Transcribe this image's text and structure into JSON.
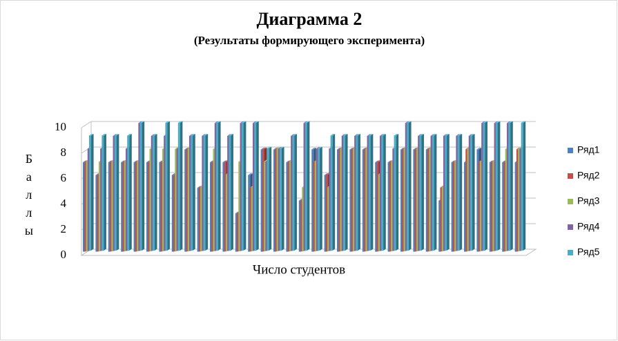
{
  "chart_data": {
    "type": "bar3d",
    "title": "Диаграмма 2",
    "subtitle": "(Результаты формирующего эксперимента)",
    "x_label": "Число студентов",
    "y_label": "Баллы",
    "categories": [
      null,
      null,
      null,
      null,
      null,
      null,
      null,
      null,
      null,
      null,
      null,
      null,
      null,
      null,
      null,
      null,
      null,
      null,
      null,
      null,
      null,
      null,
      null,
      null,
      null,
      null,
      null,
      null,
      null,
      null,
      null,
      null,
      null,
      null,
      null
    ],
    "series": [
      {
        "name": "Ряд1",
        "color": "#4f81bd",
        "values": [
          7,
          6,
          7,
          7,
          7,
          7,
          7,
          6,
          8,
          5,
          7,
          7,
          3,
          6,
          8,
          8,
          7,
          4,
          8,
          6,
          8,
          8,
          8,
          7,
          7,
          8,
          8,
          8,
          4,
          7,
          7,
          8,
          7,
          7,
          7
        ]
      },
      {
        "name": "Ряд2",
        "color": "#c0504d",
        "values": [
          7,
          6,
          7,
          7,
          7,
          7,
          7,
          6,
          8,
          5,
          7,
          7,
          3,
          5,
          8,
          8,
          7,
          4,
          7,
          6,
          8,
          8,
          8,
          7,
          7,
          8,
          8,
          8,
          5,
          7,
          8,
          7,
          7,
          7,
          8
        ]
      },
      {
        "name": "Ряд3",
        "color": "#9bbb59",
        "values": [
          7,
          7,
          7,
          7,
          7,
          8,
          8,
          8,
          8,
          5,
          8,
          6,
          7,
          5,
          7,
          8,
          7,
          5,
          7,
          5,
          8,
          8,
          8,
          6,
          7,
          8,
          8,
          8,
          5,
          7,
          8,
          7,
          7,
          8,
          8
        ]
      },
      {
        "name": "Ряд4",
        "color": "#8064a2",
        "values": [
          8,
          8,
          9,
          8,
          10,
          9,
          9,
          8,
          9,
          9,
          10,
          9,
          10,
          10,
          7,
          8,
          9,
          10,
          8,
          8,
          9,
          9,
          9,
          9,
          8,
          10,
          9,
          9,
          9,
          9,
          9,
          10,
          10,
          10,
          8
        ]
      },
      {
        "name": "Ряд5",
        "color": "#4bacc6",
        "values": [
          9,
          9,
          9,
          9,
          10,
          9,
          10,
          10,
          9,
          9,
          10,
          9,
          10,
          10,
          8,
          8,
          9,
          10,
          8,
          9,
          9,
          9,
          9,
          9,
          9,
          10,
          9,
          9,
          9,
          9,
          9,
          10,
          10,
          10,
          10
        ]
      }
    ],
    "ylim": [
      0,
      10
    ],
    "yticks": [
      0,
      2,
      4,
      6,
      8,
      10
    ],
    "grid": true,
    "legend": "right"
  }
}
